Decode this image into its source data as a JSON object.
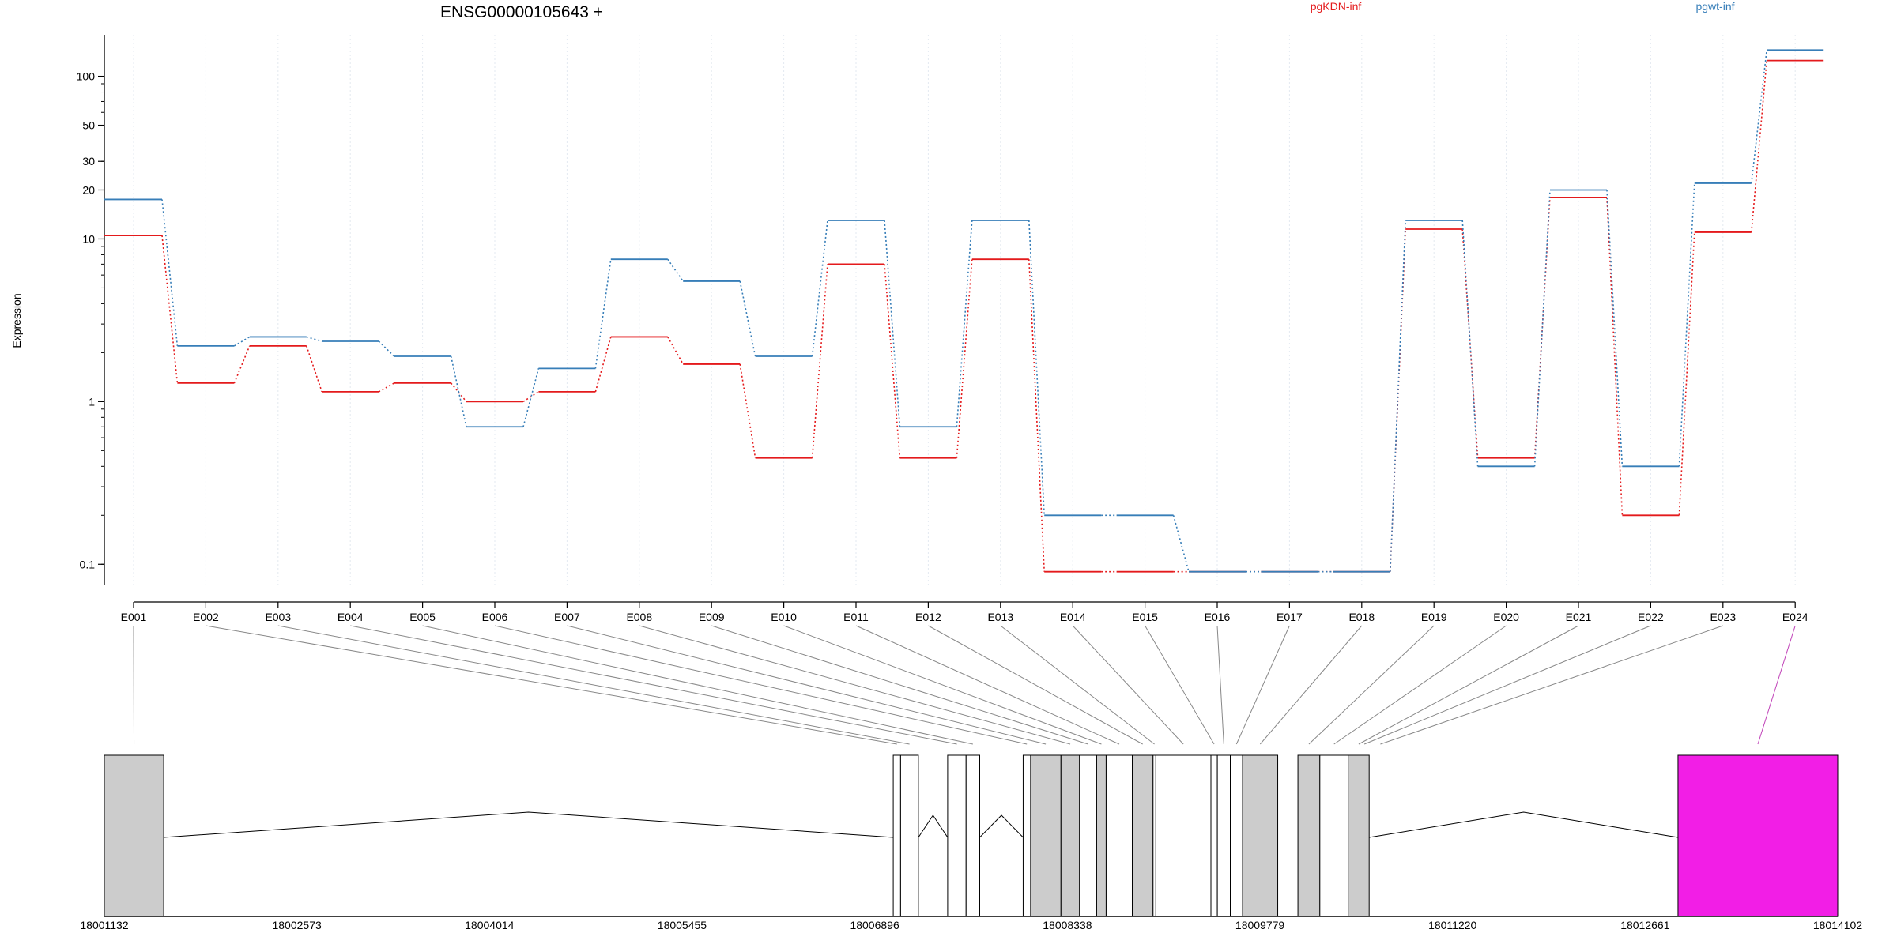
{
  "chart_data": {
    "type": "line",
    "title": "ENSG00000105643 +",
    "ylabel": "Expression",
    "y_scale": "log",
    "y_ticks": [
      0.1,
      1,
      10,
      20,
      30,
      50,
      100
    ],
    "y_tick_labels": [
      "0.1",
      "1",
      "10",
      "20",
      "30",
      "50",
      "100"
    ],
    "grid": true,
    "legend_placement": "top",
    "categories": [
      "E001",
      "E002",
      "E003",
      "E004",
      "E005",
      "E006",
      "E007",
      "E008",
      "E009",
      "E010",
      "E011",
      "E012",
      "E013",
      "E014",
      "E015",
      "E016",
      "E017",
      "E018",
      "E019",
      "E020",
      "E021",
      "E022",
      "E023",
      "E024"
    ],
    "series": [
      {
        "name": "pgKDN-inf",
        "color": "#e41a1c",
        "values": [
          10.5,
          1.3,
          2.2,
          1.15,
          1.3,
          1.0,
          1.15,
          2.5,
          1.7,
          0.45,
          7.0,
          0.45,
          7.5,
          0.09,
          0.09,
          0.09,
          0.09,
          0.09,
          11.5,
          0.45,
          18.0,
          0.2,
          11.0,
          125.0
        ]
      },
      {
        "name": "pgwt-inf",
        "color": "#377eb8",
        "values": [
          17.5,
          2.2,
          2.5,
          2.35,
          1.9,
          0.7,
          1.6,
          7.5,
          5.5,
          1.9,
          13.0,
          0.7,
          13.0,
          0.2,
          0.2,
          0.09,
          0.09,
          0.09,
          13.0,
          0.4,
          20.0,
          0.4,
          22.0,
          145.0
        ]
      }
    ],
    "gene_model": {
      "coordinate_labels": [
        "18001132",
        "18002573",
        "18004014",
        "18005455",
        "18006896",
        "18008338",
        "18009779",
        "18011220",
        "18012661",
        "18014102"
      ],
      "highlight_color": "#f21ee6",
      "exon_fill": "#cccccc",
      "exons": [
        {
          "id": "E001",
          "start": 18001132,
          "end": 18001576,
          "shaded": true
        },
        {
          "id": "E002",
          "start": 18007035,
          "end": 18007090,
          "shaded": false
        },
        {
          "id": "E003",
          "start": 18007090,
          "end": 18007223,
          "shaded": false
        },
        {
          "id": "E004",
          "start": 18007442,
          "end": 18007580,
          "shaded": false
        },
        {
          "id": "E005",
          "start": 18007580,
          "end": 18007682,
          "shaded": false
        },
        {
          "id": "E006",
          "start": 18008007,
          "end": 18008063,
          "shaded": false
        },
        {
          "id": "E007",
          "start": 18008063,
          "end": 18008290,
          "shaded": true
        },
        {
          "id": "E008",
          "start": 18008290,
          "end": 18008429,
          "shaded": true
        },
        {
          "id": "E009",
          "start": 18008429,
          "end": 18008557,
          "shaded": false
        },
        {
          "id": "E010",
          "start": 18008557,
          "end": 18008628,
          "shaded": true
        },
        {
          "id": "E011",
          "start": 18008628,
          "end": 18008824,
          "shaded": false
        },
        {
          "id": "E012",
          "start": 18008824,
          "end": 18008979,
          "shaded": true
        },
        {
          "id": "E013",
          "start": 18008979,
          "end": 18009000,
          "shaded": false
        },
        {
          "id": "E014",
          "start": 18009000,
          "end": 18009412,
          "shaded": false
        },
        {
          "id": "E015",
          "start": 18009412,
          "end": 18009460,
          "shaded": false
        },
        {
          "id": "E016",
          "start": 18009460,
          "end": 18009557,
          "shaded": false
        },
        {
          "id": "E017",
          "start": 18009557,
          "end": 18009649,
          "shaded": false
        },
        {
          "id": "E018",
          "start": 18009649,
          "end": 18009912,
          "shaded": true
        },
        {
          "id": "E019",
          "start": 18010063,
          "end": 18010227,
          "shaded": true
        },
        {
          "id": "E020",
          "start": 18010227,
          "end": 18010439,
          "shaded": false
        },
        {
          "id": "E021",
          "start": 18010439,
          "end": 18010596,
          "shaded": true
        },
        {
          "id": "E024",
          "start": 18012907,
          "end": 18014102,
          "shaded": false,
          "highlight": true
        }
      ],
      "introns": [
        {
          "from": 18001576,
          "to": 18007035
        },
        {
          "from": 18007223,
          "to": 18007442
        },
        {
          "from": 18007682,
          "to": 18008007
        },
        {
          "from": 18010596,
          "to": 18012907
        }
      ]
    }
  }
}
